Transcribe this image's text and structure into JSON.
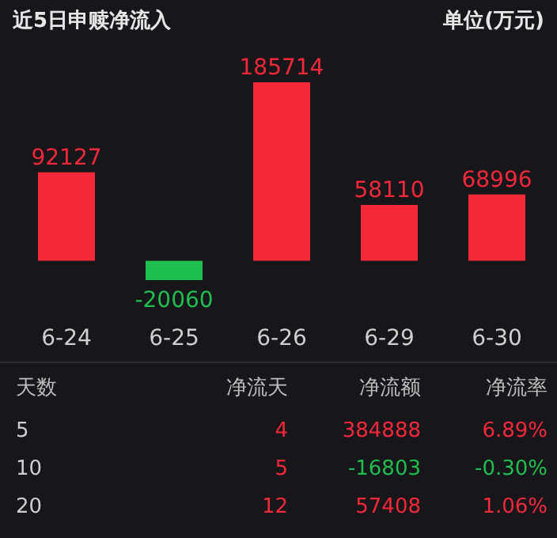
{
  "chart_data": [
    {
      "type": "bar",
      "title": "近5日申赎净流入",
      "annotations": [
        "单位(万元)"
      ],
      "categories": [
        "6-24",
        "6-25",
        "6-26",
        "6-29",
        "6-30"
      ],
      "values": [
        92127,
        -20060,
        185714,
        58110,
        68996
      ],
      "colors": [
        "#f5283a",
        "#1fbf4f",
        "#f5283a",
        "#f5283a",
        "#f5283a"
      ],
      "data_labels": true
    },
    {
      "type": "other",
      "categories": [
        "天数",
        "净流天",
        "净流额",
        "净流率"
      ],
      "cells": [
        [
          "5",
          "4",
          "384888",
          "6.89%"
        ],
        [
          "10",
          "5",
          "-16803",
          "-0.30%"
        ],
        [
          "20",
          "12",
          "57408",
          "1.06%"
        ]
      ]
    }
  ]
}
